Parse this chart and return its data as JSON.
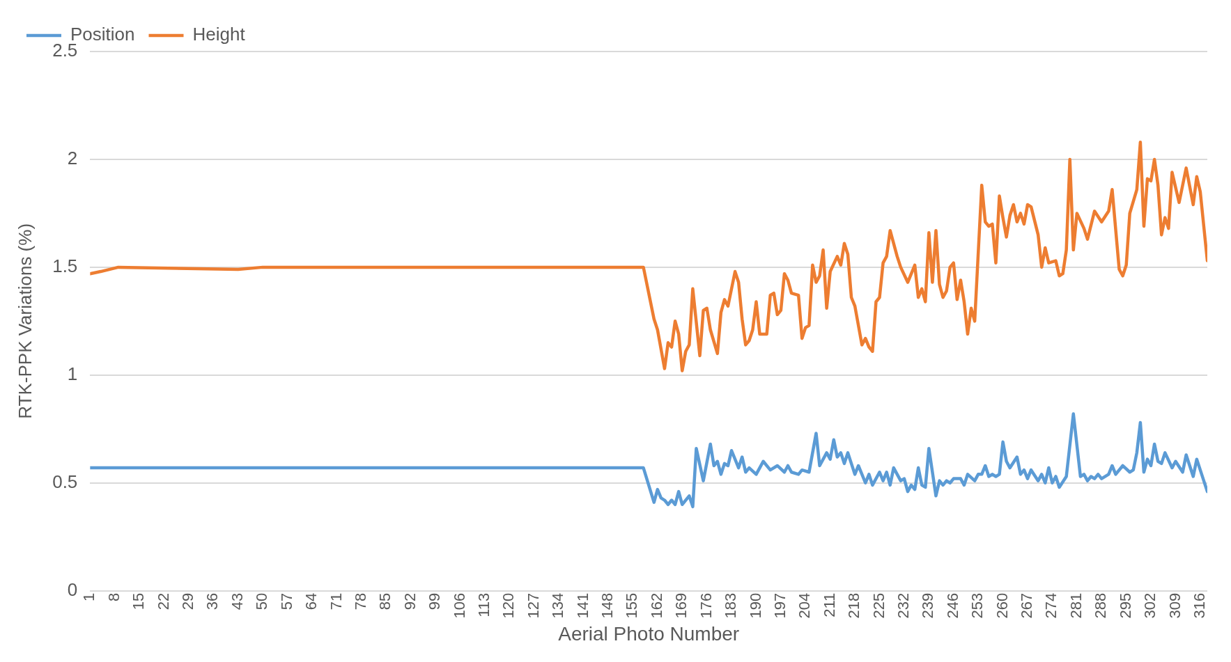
{
  "chart_data": {
    "type": "line",
    "xlabel": "Aerial Photo Number",
    "ylabel": "RTK-PPK Variations (%)",
    "xlim": [
      1,
      318
    ],
    "ylim": [
      0,
      2.5
    ],
    "xticks": [
      1,
      8,
      15,
      22,
      29,
      36,
      43,
      50,
      57,
      64,
      71,
      78,
      85,
      92,
      99,
      106,
      113,
      120,
      127,
      134,
      141,
      148,
      155,
      162,
      169,
      176,
      183,
      190,
      197,
      204,
      211,
      218,
      225,
      232,
      239,
      246,
      253,
      260,
      267,
      274,
      281,
      288,
      295,
      302,
      309,
      316
    ],
    "yticks": [
      0,
      0.5,
      1,
      1.5,
      2,
      2.5
    ],
    "grid": "y",
    "legend": "top left",
    "marker": "none",
    "line_style": "solid",
    "series": [
      {
        "name": "Position",
        "color": "#5b9bd5",
        "x": [
          1,
          50,
          158,
          161,
          162,
          163,
          164,
          165,
          166,
          167,
          168,
          169,
          171,
          172,
          173,
          175,
          177,
          178,
          179,
          180,
          181,
          182,
          183,
          185,
          186,
          187,
          188,
          190,
          191,
          192,
          194,
          196,
          198,
          199,
          200,
          202,
          203,
          205,
          207,
          208,
          210,
          211,
          212,
          213,
          214,
          215,
          216,
          218,
          219,
          221,
          222,
          223,
          225,
          226,
          227,
          228,
          229,
          231,
          232,
          233,
          234,
          235,
          236,
          237,
          238,
          239,
          241,
          242,
          243,
          244,
          245,
          246,
          248,
          249,
          250,
          252,
          253,
          254,
          255,
          256,
          257,
          258,
          259,
          260,
          261,
          262,
          264,
          265,
          266,
          267,
          268,
          270,
          271,
          272,
          273,
          274,
          275,
          276,
          278,
          280,
          282,
          283,
          284,
          285,
          286,
          287,
          288,
          290,
          291,
          292,
          294,
          296,
          297,
          298,
          299,
          300,
          301,
          302,
          303,
          304,
          305,
          306,
          308,
          309,
          311,
          312,
          314,
          315,
          318
        ],
        "values": [
          0.57,
          0.57,
          0.57,
          0.41,
          0.47,
          0.43,
          0.42,
          0.4,
          0.42,
          0.4,
          0.46,
          0.4,
          0.44,
          0.39,
          0.66,
          0.51,
          0.68,
          0.58,
          0.6,
          0.54,
          0.59,
          0.58,
          0.65,
          0.57,
          0.62,
          0.55,
          0.57,
          0.54,
          0.57,
          0.6,
          0.56,
          0.58,
          0.55,
          0.58,
          0.55,
          0.54,
          0.56,
          0.55,
          0.73,
          0.58,
          0.64,
          0.61,
          0.7,
          0.62,
          0.64,
          0.59,
          0.64,
          0.54,
          0.58,
          0.5,
          0.54,
          0.49,
          0.55,
          0.51,
          0.55,
          0.49,
          0.57,
          0.51,
          0.52,
          0.46,
          0.49,
          0.47,
          0.57,
          0.49,
          0.48,
          0.66,
          0.44,
          0.51,
          0.49,
          0.51,
          0.5,
          0.52,
          0.52,
          0.49,
          0.54,
          0.51,
          0.54,
          0.54,
          0.58,
          0.53,
          0.54,
          0.53,
          0.54,
          0.69,
          0.6,
          0.57,
          0.62,
          0.54,
          0.56,
          0.52,
          0.56,
          0.51,
          0.54,
          0.5,
          0.57,
          0.5,
          0.53,
          0.48,
          0.53,
          0.82,
          0.53,
          0.54,
          0.51,
          0.53,
          0.52,
          0.54,
          0.52,
          0.54,
          0.58,
          0.54,
          0.58,
          0.55,
          0.56,
          0.64,
          0.78,
          0.55,
          0.61,
          0.58,
          0.68,
          0.6,
          0.59,
          0.64,
          0.57,
          0.6,
          0.55,
          0.63,
          0.53,
          0.61,
          0.46
        ]
      },
      {
        "name": "Height",
        "color": "#ed7d31",
        "x": [
          1,
          4,
          9,
          43,
          50,
          158,
          161,
          162,
          164,
          165,
          166,
          167,
          168,
          169,
          170,
          171,
          172,
          174,
          175,
          176,
          177,
          179,
          180,
          181,
          182,
          184,
          185,
          186,
          187,
          188,
          189,
          190,
          191,
          193,
          194,
          195,
          196,
          197,
          198,
          199,
          200,
          202,
          203,
          204,
          205,
          206,
          207,
          208,
          209,
          210,
          211,
          213,
          214,
          215,
          216,
          217,
          218,
          220,
          221,
          222,
          223,
          224,
          225,
          226,
          227,
          228,
          230,
          231,
          233,
          235,
          236,
          237,
          238,
          239,
          240,
          241,
          242,
          243,
          244,
          245,
          246,
          247,
          248,
          249,
          250,
          251,
          252,
          254,
          255,
          256,
          257,
          258,
          259,
          260,
          261,
          262,
          263,
          264,
          265,
          266,
          267,
          268,
          270,
          271,
          272,
          273,
          275,
          276,
          277,
          278,
          279,
          280,
          281,
          283,
          284,
          286,
          288,
          290,
          291,
          293,
          294,
          295,
          296,
          298,
          299,
          300,
          301,
          302,
          303,
          304,
          305,
          306,
          307,
          308,
          310,
          312,
          314,
          315,
          316,
          318
        ],
        "values": [
          1.47,
          1.48,
          1.5,
          1.49,
          1.5,
          1.5,
          1.26,
          1.21,
          1.03,
          1.15,
          1.13,
          1.25,
          1.19,
          1.02,
          1.11,
          1.14,
          1.4,
          1.09,
          1.3,
          1.31,
          1.21,
          1.1,
          1.29,
          1.35,
          1.32,
          1.48,
          1.43,
          1.26,
          1.14,
          1.16,
          1.21,
          1.34,
          1.19,
          1.19,
          1.37,
          1.38,
          1.28,
          1.3,
          1.47,
          1.44,
          1.38,
          1.37,
          1.17,
          1.22,
          1.23,
          1.51,
          1.43,
          1.46,
          1.58,
          1.31,
          1.48,
          1.55,
          1.51,
          1.61,
          1.56,
          1.36,
          1.32,
          1.14,
          1.17,
          1.13,
          1.11,
          1.34,
          1.36,
          1.52,
          1.55,
          1.67,
          1.55,
          1.5,
          1.43,
          1.51,
          1.36,
          1.4,
          1.34,
          1.66,
          1.43,
          1.67,
          1.42,
          1.36,
          1.39,
          1.5,
          1.52,
          1.35,
          1.44,
          1.34,
          1.19,
          1.31,
          1.25,
          1.88,
          1.71,
          1.69,
          1.7,
          1.52,
          1.83,
          1.73,
          1.64,
          1.74,
          1.79,
          1.71,
          1.75,
          1.7,
          1.79,
          1.78,
          1.65,
          1.5,
          1.59,
          1.52,
          1.53,
          1.46,
          1.47,
          1.58,
          2.0,
          1.58,
          1.75,
          1.68,
          1.63,
          1.76,
          1.71,
          1.76,
          1.86,
          1.49,
          1.46,
          1.51,
          1.75,
          1.86,
          2.08,
          1.69,
          1.91,
          1.9,
          2.0,
          1.88,
          1.65,
          1.73,
          1.68,
          1.94,
          1.8,
          1.96,
          1.79,
          1.92,
          1.85,
          1.53
        ]
      }
    ]
  }
}
